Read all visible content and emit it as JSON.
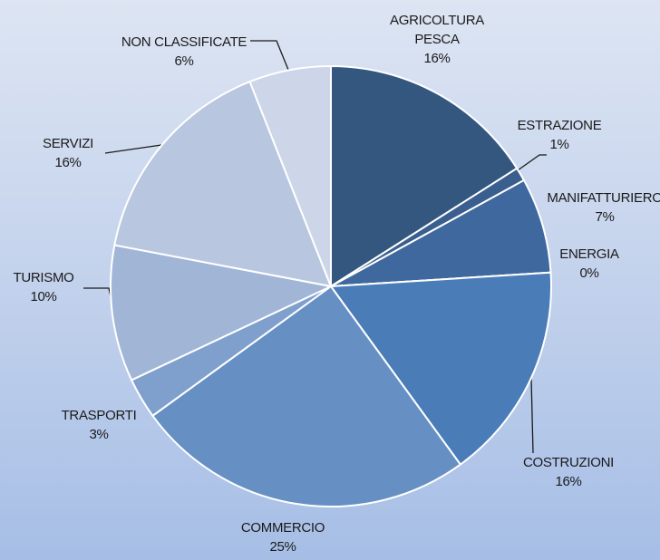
{
  "chart_data": {
    "type": "pie",
    "categories": [
      "AGRICOLTURA\nPESCA",
      "ESTRAZIONE",
      "MANIFATTURIERO",
      "ENERGIA",
      "COSTRUZIONI",
      "COMMERCIO",
      "TRASPORTI",
      "TURISMO",
      "SERVIZI",
      "NON CLASSIFICATE"
    ],
    "values": [
      16,
      1,
      7,
      0,
      16,
      25,
      3,
      10,
      16,
      6
    ],
    "value_labels": [
      "16%",
      "1%",
      "7%",
      "0%",
      "16%",
      "25%",
      "3%",
      "10%",
      "16%",
      "6%"
    ],
    "colors": [
      "#34577f",
      "#3a5f8e",
      "#3f689e",
      "#4470ab",
      "#4a7cb8",
      "#6690c4",
      "#7f9fcc",
      "#a1b5d7",
      "#b9c6e0",
      "#cdd6e8"
    ]
  }
}
